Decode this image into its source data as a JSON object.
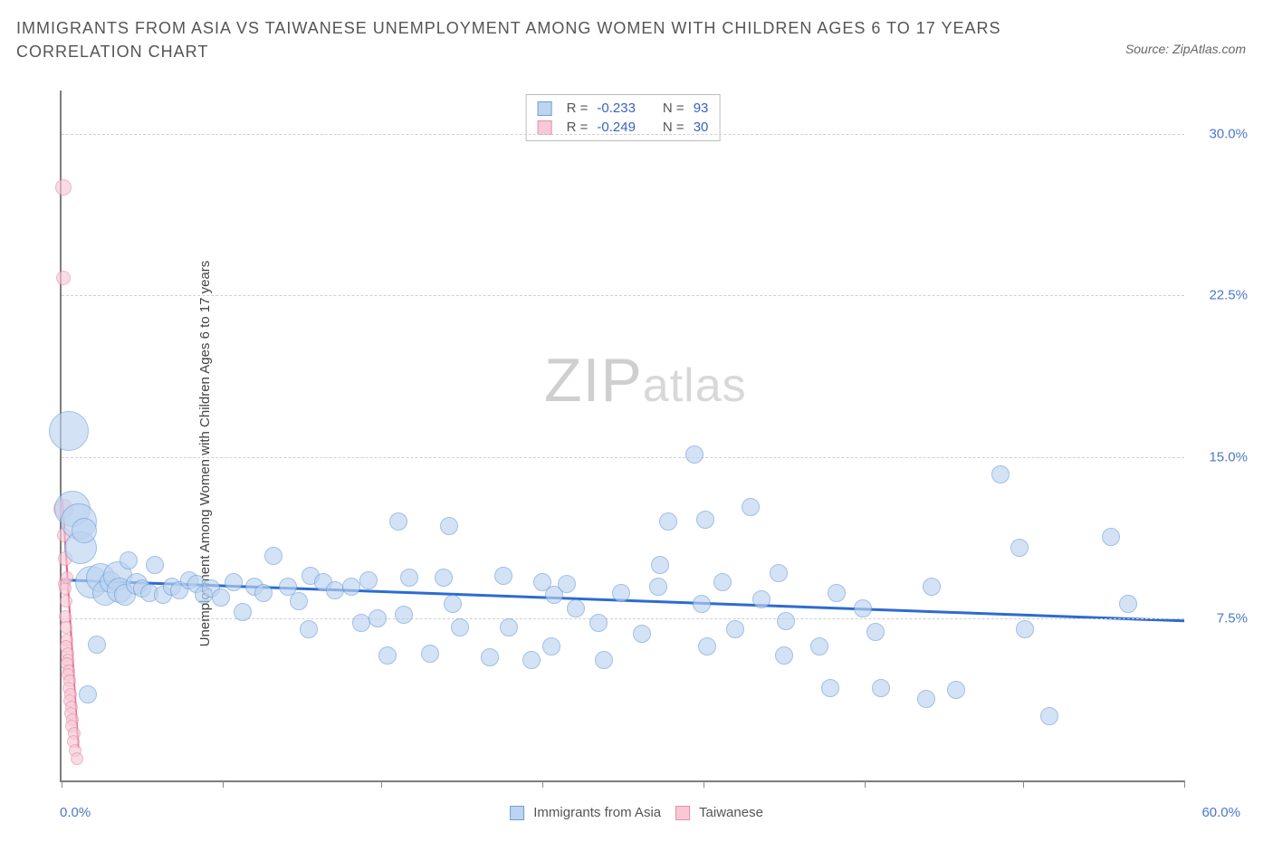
{
  "title": "IMMIGRANTS FROM ASIA VS TAIWANESE UNEMPLOYMENT AMONG WOMEN WITH CHILDREN AGES 6 TO 17 YEARS CORRELATION CHART",
  "source": "Source: ZipAtlas.com",
  "ylabel": "Unemployment Among Women with Children Ages 6 to 17 years",
  "watermark_a": "ZIP",
  "watermark_b": "atlas",
  "chart": {
    "type": "scatter",
    "xlim": [
      0,
      60
    ],
    "ylim": [
      0,
      32
    ],
    "xticks": [
      0,
      8.6,
      17.1,
      25.7,
      34.3,
      42.9,
      51.4,
      60
    ],
    "ygrid": [
      7.5,
      15.0,
      22.5,
      30.0
    ],
    "ytick_labels": [
      "7.5%",
      "15.0%",
      "22.5%",
      "30.0%"
    ],
    "xaxis_min_label": "0.0%",
    "xaxis_max_label": "60.0%",
    "background_color": "#ffffff",
    "grid_color": "#d0d0d0",
    "axis_color": "#7d7d7d",
    "label_color": "#4a78c8",
    "label_fontsize": 15,
    "title_fontsize": 18,
    "title_color": "#555555"
  },
  "series": {
    "asia": {
      "label": "Immigrants from Asia",
      "fill": "#bcd4f0",
      "stroke": "#6f9fd8",
      "opacity": 0.65,
      "trend_color": "#2e6bd1",
      "trend_width": 3,
      "trend": {
        "x1": 0,
        "y1": 9.3,
        "x2": 60,
        "y2": 7.4
      },
      "stats": {
        "R": "-0.233",
        "N": "93"
      },
      "points": [
        {
          "x": 0.4,
          "y": 16.2,
          "r": 22
        },
        {
          "x": 0.6,
          "y": 12.6,
          "r": 20
        },
        {
          "x": 0.9,
          "y": 12.0,
          "r": 20
        },
        {
          "x": 1.0,
          "y": 10.8,
          "r": 18
        },
        {
          "x": 1.2,
          "y": 11.6,
          "r": 14
        },
        {
          "x": 1.4,
          "y": 4.0,
          "r": 10
        },
        {
          "x": 1.6,
          "y": 9.2,
          "r": 18
        },
        {
          "x": 1.9,
          "y": 6.3,
          "r": 10
        },
        {
          "x": 2.1,
          "y": 9.4,
          "r": 16
        },
        {
          "x": 2.3,
          "y": 8.7,
          "r": 14
        },
        {
          "x": 2.6,
          "y": 9.2,
          "r": 12
        },
        {
          "x": 3.0,
          "y": 9.5,
          "r": 16
        },
        {
          "x": 3.1,
          "y": 8.8,
          "r": 14
        },
        {
          "x": 3.4,
          "y": 8.6,
          "r": 12
        },
        {
          "x": 3.6,
          "y": 10.2,
          "r": 10
        },
        {
          "x": 4.0,
          "y": 9.1,
          "r": 12
        },
        {
          "x": 4.3,
          "y": 8.9,
          "r": 10
        },
        {
          "x": 4.7,
          "y": 8.7,
          "r": 10
        },
        {
          "x": 5.0,
          "y": 10.0,
          "r": 10
        },
        {
          "x": 5.4,
          "y": 8.6,
          "r": 10
        },
        {
          "x": 5.9,
          "y": 9.0,
          "r": 10
        },
        {
          "x": 6.3,
          "y": 8.8,
          "r": 10
        },
        {
          "x": 6.8,
          "y": 9.3,
          "r": 10
        },
        {
          "x": 7.2,
          "y": 9.1,
          "r": 10
        },
        {
          "x": 7.6,
          "y": 8.6,
          "r": 10
        },
        {
          "x": 8.0,
          "y": 8.9,
          "r": 10
        },
        {
          "x": 8.5,
          "y": 8.5,
          "r": 10
        },
        {
          "x": 9.2,
          "y": 9.2,
          "r": 10
        },
        {
          "x": 9.7,
          "y": 7.8,
          "r": 10
        },
        {
          "x": 10.3,
          "y": 9.0,
          "r": 10
        },
        {
          "x": 10.8,
          "y": 8.7,
          "r": 10
        },
        {
          "x": 11.3,
          "y": 10.4,
          "r": 10
        },
        {
          "x": 12.1,
          "y": 9.0,
          "r": 10
        },
        {
          "x": 12.7,
          "y": 8.3,
          "r": 10
        },
        {
          "x": 13.3,
          "y": 9.5,
          "r": 10
        },
        {
          "x": 13.2,
          "y": 7.0,
          "r": 10
        },
        {
          "x": 14.0,
          "y": 9.2,
          "r": 10
        },
        {
          "x": 14.6,
          "y": 8.8,
          "r": 10
        },
        {
          "x": 15.5,
          "y": 9.0,
          "r": 10
        },
        {
          "x": 16.0,
          "y": 7.3,
          "r": 10
        },
        {
          "x": 16.4,
          "y": 9.3,
          "r": 10
        },
        {
          "x": 16.9,
          "y": 7.5,
          "r": 10
        },
        {
          "x": 17.4,
          "y": 5.8,
          "r": 10
        },
        {
          "x": 18.0,
          "y": 12.0,
          "r": 10
        },
        {
          "x": 18.3,
          "y": 7.7,
          "r": 10
        },
        {
          "x": 18.6,
          "y": 9.4,
          "r": 10
        },
        {
          "x": 19.7,
          "y": 5.9,
          "r": 10
        },
        {
          "x": 20.4,
          "y": 9.4,
          "r": 10
        },
        {
          "x": 20.7,
          "y": 11.8,
          "r": 10
        },
        {
          "x": 20.9,
          "y": 8.2,
          "r": 10
        },
        {
          "x": 21.3,
          "y": 7.1,
          "r": 10
        },
        {
          "x": 22.9,
          "y": 5.7,
          "r": 10
        },
        {
          "x": 23.6,
          "y": 9.5,
          "r": 10
        },
        {
          "x": 23.9,
          "y": 7.1,
          "r": 10
        },
        {
          "x": 25.1,
          "y": 5.6,
          "r": 10
        },
        {
          "x": 25.7,
          "y": 9.2,
          "r": 10
        },
        {
          "x": 26.2,
          "y": 6.2,
          "r": 10
        },
        {
          "x": 26.3,
          "y": 8.6,
          "r": 10
        },
        {
          "x": 27.0,
          "y": 9.1,
          "r": 10
        },
        {
          "x": 27.5,
          "y": 8.0,
          "r": 10
        },
        {
          "x": 28.7,
          "y": 7.3,
          "r": 10
        },
        {
          "x": 29.0,
          "y": 5.6,
          "r": 10
        },
        {
          "x": 29.9,
          "y": 8.7,
          "r": 10
        },
        {
          "x": 31.0,
          "y": 6.8,
          "r": 10
        },
        {
          "x": 31.9,
          "y": 9.0,
          "r": 10
        },
        {
          "x": 32.0,
          "y": 10.0,
          "r": 10
        },
        {
          "x": 32.4,
          "y": 12.0,
          "r": 10
        },
        {
          "x": 33.8,
          "y": 15.1,
          "r": 10
        },
        {
          "x": 34.2,
          "y": 8.2,
          "r": 10
        },
        {
          "x": 34.4,
          "y": 12.1,
          "r": 10
        },
        {
          "x": 34.5,
          "y": 6.2,
          "r": 10
        },
        {
          "x": 35.3,
          "y": 9.2,
          "r": 10
        },
        {
          "x": 36.0,
          "y": 7.0,
          "r": 10
        },
        {
          "x": 36.8,
          "y": 12.7,
          "r": 10
        },
        {
          "x": 37.4,
          "y": 8.4,
          "r": 10
        },
        {
          "x": 38.3,
          "y": 9.6,
          "r": 10
        },
        {
          "x": 38.6,
          "y": 5.8,
          "r": 10
        },
        {
          "x": 38.7,
          "y": 7.4,
          "r": 10
        },
        {
          "x": 40.5,
          "y": 6.2,
          "r": 10
        },
        {
          "x": 41.1,
          "y": 4.3,
          "r": 10
        },
        {
          "x": 41.4,
          "y": 8.7,
          "r": 10
        },
        {
          "x": 42.8,
          "y": 8.0,
          "r": 10
        },
        {
          "x": 43.5,
          "y": 6.9,
          "r": 10
        },
        {
          "x": 43.8,
          "y": 4.3,
          "r": 10
        },
        {
          "x": 46.2,
          "y": 3.8,
          "r": 10
        },
        {
          "x": 46.5,
          "y": 9.0,
          "r": 10
        },
        {
          "x": 47.8,
          "y": 4.2,
          "r": 10
        },
        {
          "x": 50.2,
          "y": 14.2,
          "r": 10
        },
        {
          "x": 51.2,
          "y": 10.8,
          "r": 10
        },
        {
          "x": 51.5,
          "y": 7.0,
          "r": 10
        },
        {
          "x": 52.8,
          "y": 3.0,
          "r": 10
        },
        {
          "x": 56.1,
          "y": 11.3,
          "r": 10
        },
        {
          "x": 57.0,
          "y": 8.2,
          "r": 10
        }
      ]
    },
    "taiwanese": {
      "label": "Taiwanese",
      "fill": "#f7c9d6",
      "stroke": "#e88fa8",
      "opacity": 0.65,
      "trend_color": "#e85a8a",
      "trend_width": 2,
      "trend": {
        "x1": 0.05,
        "y1": 13.0,
        "x2": 0.9,
        "y2": 1.5
      },
      "stats": {
        "R": "-0.249",
        "N": "30"
      },
      "points": [
        {
          "x": 0.1,
          "y": 27.5,
          "r": 9
        },
        {
          "x": 0.12,
          "y": 23.3,
          "r": 8
        },
        {
          "x": 0.1,
          "y": 12.6,
          "r": 11
        },
        {
          "x": 0.14,
          "y": 11.4,
          "r": 8
        },
        {
          "x": 0.18,
          "y": 10.3,
          "r": 8
        },
        {
          "x": 0.15,
          "y": 9.1,
          "r": 7
        },
        {
          "x": 0.2,
          "y": 8.9,
          "r": 7
        },
        {
          "x": 0.23,
          "y": 8.3,
          "r": 7
        },
        {
          "x": 0.28,
          "y": 9.4,
          "r": 7
        },
        {
          "x": 0.19,
          "y": 7.6,
          "r": 7
        },
        {
          "x": 0.26,
          "y": 7.1,
          "r": 7
        },
        {
          "x": 0.3,
          "y": 6.5,
          "r": 7
        },
        {
          "x": 0.22,
          "y": 6.2,
          "r": 7
        },
        {
          "x": 0.33,
          "y": 5.9,
          "r": 7
        },
        {
          "x": 0.36,
          "y": 5.6,
          "r": 7
        },
        {
          "x": 0.28,
          "y": 5.4,
          "r": 7
        },
        {
          "x": 0.4,
          "y": 5.1,
          "r": 7
        },
        {
          "x": 0.34,
          "y": 4.9,
          "r": 7
        },
        {
          "x": 0.45,
          "y": 4.6,
          "r": 7
        },
        {
          "x": 0.38,
          "y": 4.3,
          "r": 7
        },
        {
          "x": 0.5,
          "y": 4.0,
          "r": 7
        },
        {
          "x": 0.42,
          "y": 3.7,
          "r": 7
        },
        {
          "x": 0.55,
          "y": 3.4,
          "r": 7
        },
        {
          "x": 0.48,
          "y": 3.1,
          "r": 7
        },
        {
          "x": 0.6,
          "y": 2.8,
          "r": 7
        },
        {
          "x": 0.54,
          "y": 2.5,
          "r": 7
        },
        {
          "x": 0.66,
          "y": 2.2,
          "r": 7
        },
        {
          "x": 0.62,
          "y": 1.8,
          "r": 7
        },
        {
          "x": 0.72,
          "y": 1.4,
          "r": 7
        },
        {
          "x": 0.8,
          "y": 1.0,
          "r": 7
        }
      ]
    }
  },
  "top_legend": {
    "r_label": "R =",
    "n_label": "N ="
  }
}
